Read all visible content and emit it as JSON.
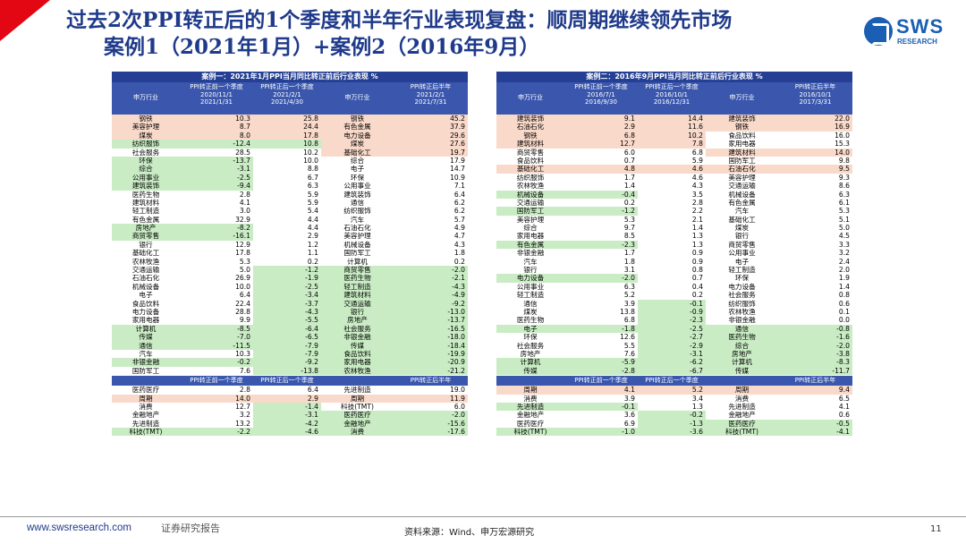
{
  "title": {
    "line1": "过去2次PPI转正后的1个季度和半年行业表现复盘：顺周期继续领先市场",
    "line2": "案例1（2021年1月）+案例2（2016年9月）"
  },
  "logo": {
    "text": "SWS",
    "sub": "RESEARCH",
    "color": "#1a5fb4"
  },
  "colors": {
    "header": "#243f94",
    "subheader": "#3a57ad",
    "green": "#c9ecc4",
    "pink": "#f9d9c9",
    "title": "#1f3a8a",
    "accent": "#e30613"
  },
  "panels": [
    {
      "title": "案例一：2021年1月PPI当月同比转正前后行业表现 %",
      "head": {
        "ind": "申万行业",
        "pre": [
          "PPI转正前一个季度",
          "2020/11/1",
          "2021/1/31"
        ],
        "post": [
          "PPI转正后一个季度",
          "2021/2/1",
          "2021/4/30"
        ],
        "ind2": "申万行业",
        "half": [
          "PPI转正后半年",
          "2021/2/1",
          "2021/7/31"
        ]
      },
      "rows": [
        {
          "a": "钢铁",
          "b": "10.3",
          "c": "25.8",
          "d": "钢铁",
          "e": "45.2",
          "ca": "pk",
          "cb": "pk",
          "cc": "pk",
          "cd": "pk",
          "ce": "pk"
        },
        {
          "a": "美容护理",
          "b": "8.7",
          "c": "24.4",
          "d": "有色金属",
          "e": "37.9",
          "ca": "pk",
          "cb": "pk",
          "cc": "pk",
          "cd": "pk",
          "ce": "pk"
        },
        {
          "a": "煤炭",
          "b": "8.0",
          "c": "17.8",
          "d": "电力设备",
          "e": "29.6",
          "ca": "pk",
          "cb": "pk",
          "cc": "pk",
          "cd": "pk",
          "ce": "pk"
        },
        {
          "a": "纺织服饰",
          "b": "-12.4",
          "c": "10.8",
          "d": "煤炭",
          "e": "27.6",
          "ca": "gr",
          "cb": "gr",
          "cc": "gr",
          "cd": "pk",
          "ce": "pk"
        },
        {
          "a": "社会服务",
          "b": "28.5",
          "c": "10.2",
          "d": "基础化工",
          "e": "19.7",
          "cd": "pk",
          "ce": "pk"
        },
        {
          "a": "环保",
          "b": "-13.7",
          "c": "10.0",
          "d": "综合",
          "e": "17.9",
          "ca": "gr",
          "cb": "gr"
        },
        {
          "a": "综合",
          "b": "-3.1",
          "c": "8.8",
          "d": "电子",
          "e": "14.7",
          "ca": "gr",
          "cb": "gr"
        },
        {
          "a": "公用事业",
          "b": "-2.5",
          "c": "6.7",
          "d": "环保",
          "e": "10.9",
          "ca": "gr",
          "cb": "gr"
        },
        {
          "a": "建筑装饰",
          "b": "-9.4",
          "c": "6.3",
          "d": "公用事业",
          "e": "7.1",
          "ca": "gr",
          "cb": "gr"
        },
        {
          "a": "医药生物",
          "b": "2.8",
          "c": "5.9",
          "d": "建筑装饰",
          "e": "6.4"
        },
        {
          "a": "建筑材料",
          "b": "4.1",
          "c": "5.9",
          "d": "通信",
          "e": "6.2"
        },
        {
          "a": "轻工制造",
          "b": "3.0",
          "c": "5.4",
          "d": "纺织服饰",
          "e": "6.2"
        },
        {
          "a": "有色金属",
          "b": "32.9",
          "c": "4.4",
          "d": "汽车",
          "e": "5.7"
        },
        {
          "a": "房地产",
          "b": "-8.2",
          "c": "4.4",
          "d": "石油石化",
          "e": "4.9",
          "ca": "gr",
          "cb": "gr"
        },
        {
          "a": "商贸零售",
          "b": "-16.1",
          "c": "2.9",
          "d": "美容护理",
          "e": "4.7",
          "ca": "gr",
          "cb": "gr"
        },
        {
          "a": "银行",
          "b": "12.9",
          "c": "1.2",
          "d": "机械设备",
          "e": "4.3"
        },
        {
          "a": "基础化工",
          "b": "17.8",
          "c": "1.1",
          "d": "国防军工",
          "e": "1.8"
        },
        {
          "a": "农林牧渔",
          "b": "5.3",
          "c": "0.2",
          "d": "计算机",
          "e": "0.2"
        },
        {
          "a": "交通运输",
          "b": "5.0",
          "c": "-1.2",
          "d": "商贸零售",
          "e": "-2.0",
          "cc": "gr",
          "cd": "gr",
          "ce": "gr"
        },
        {
          "a": "石油石化",
          "b": "26.9",
          "c": "-1.9",
          "d": "医药生物",
          "e": "-2.1",
          "cc": "gr",
          "cd": "gr",
          "ce": "gr"
        },
        {
          "a": "机械设备",
          "b": "10.0",
          "c": "-2.5",
          "d": "轻工制造",
          "e": "-4.3",
          "cc": "gr",
          "cd": "gr",
          "ce": "gr"
        },
        {
          "a": "电子",
          "b": "6.4",
          "c": "-3.4",
          "d": "建筑材料",
          "e": "-4.9",
          "cc": "gr",
          "cd": "gr",
          "ce": "gr"
        },
        {
          "a": "食品饮料",
          "b": "22.4",
          "c": "-3.7",
          "d": "交通运输",
          "e": "-9.2",
          "cc": "gr",
          "cd": "gr",
          "ce": "gr"
        },
        {
          "a": "电力设备",
          "b": "28.8",
          "c": "-4.3",
          "d": "银行",
          "e": "-13.0",
          "cc": "gr",
          "cd": "gr",
          "ce": "gr"
        },
        {
          "a": "家用电器",
          "b": "9.9",
          "c": "-5.5",
          "d": "房地产",
          "e": "-13.7",
          "cc": "gr",
          "cd": "gr",
          "ce": "gr"
        },
        {
          "a": "计算机",
          "b": "-8.5",
          "c": "-6.4",
          "d": "社会服务",
          "e": "-16.5",
          "ca": "gr",
          "cb": "gr",
          "cc": "gr",
          "cd": "gr",
          "ce": "gr"
        },
        {
          "a": "传媒",
          "b": "-7.0",
          "c": "-6.5",
          "d": "非银金融",
          "e": "-18.0",
          "ca": "gr",
          "cb": "gr",
          "cc": "gr",
          "cd": "gr",
          "ce": "gr"
        },
        {
          "a": "通信",
          "b": "-11.5",
          "c": "-7.9",
          "d": "传媒",
          "e": "-18.4",
          "ca": "gr",
          "cb": "gr",
          "cc": "gr",
          "cd": "gr",
          "ce": "gr"
        },
        {
          "a": "汽车",
          "b": "10.3",
          "c": "-7.9",
          "d": "食品饮料",
          "e": "-19.9",
          "cc": "gr",
          "cd": "gr",
          "ce": "gr"
        },
        {
          "a": "非银金融",
          "b": "-0.2",
          "c": "-9.2",
          "d": "家用电器",
          "e": "-20.9",
          "ca": "gr",
          "cb": "gr",
          "cc": "gr",
          "cd": "gr",
          "ce": "gr"
        },
        {
          "a": "国防军工",
          "b": "7.6",
          "c": "-13.8",
          "d": "农林牧渔",
          "e": "-21.2",
          "cc": "gr",
          "cd": "gr",
          "ce": "gr"
        }
      ],
      "sub": {
        "pre": "PPI转正前一个季度",
        "post": "PPI转正后一个季度",
        "half": "PPI转正后半年"
      },
      "rows2": [
        {
          "a": "医药医疗",
          "b": "2.8",
          "c": "6.4",
          "d": "先进制造",
          "e": "19.0"
        },
        {
          "a": "周期",
          "b": "14.0",
          "c": "2.9",
          "d": "周期",
          "e": "11.9",
          "ca": "pk",
          "cb": "pk",
          "cc": "pk",
          "cd": "pk",
          "ce": "pk"
        },
        {
          "a": "消费",
          "b": "12.7",
          "c": "-1.4",
          "d": "科技(TMT)",
          "e": "6.0",
          "cc": "gr"
        },
        {
          "a": "金融地产",
          "b": "3.2",
          "c": "-3.1",
          "d": "医药医疗",
          "e": "-2.0",
          "cc": "gr",
          "cd": "gr",
          "ce": "gr"
        },
        {
          "a": "先进制造",
          "b": "13.2",
          "c": "-4.2",
          "d": "金融地产",
          "e": "-15.6",
          "cc": "gr",
          "cd": "gr",
          "ce": "gr"
        },
        {
          "a": "科技(TMT)",
          "b": "-2.2",
          "c": "-4.6",
          "d": "消费",
          "e": "-17.6",
          "ca": "gr",
          "cb": "gr",
          "cc": "gr",
          "cd": "gr",
          "ce": "gr"
        }
      ]
    },
    {
      "title": "案例二：2016年9月PPI当月同比转正前后行业表现 %",
      "head": {
        "ind": "申万行业",
        "pre": [
          "PPI转正前一个季度",
          "2016/7/1",
          "2016/9/30"
        ],
        "post": [
          "PPI转正后一个季度",
          "2016/10/1",
          "2016/12/31"
        ],
        "ind2": "申万行业",
        "half": [
          "PPI转正后半年",
          "2016/10/1",
          "2017/3/31"
        ]
      },
      "rows": [
        {
          "a": "建筑装饰",
          "b": "9.1",
          "c": "14.4",
          "d": "建筑装饰",
          "e": "22.0",
          "ca": "pk",
          "cb": "pk",
          "cc": "pk",
          "cd": "pk",
          "ce": "pk"
        },
        {
          "a": "石油石化",
          "b": "2.9",
          "c": "11.6",
          "d": "钢铁",
          "e": "16.9",
          "ca": "pk",
          "cb": "pk",
          "cc": "pk",
          "cd": "pk",
          "ce": "pk"
        },
        {
          "a": "钢铁",
          "b": "6.8",
          "c": "10.2",
          "d": "食品饮料",
          "e": "16.0",
          "ca": "pk",
          "cb": "pk",
          "cc": "pk"
        },
        {
          "a": "建筑材料",
          "b": "12.7",
          "c": "7.8",
          "d": "家用电器",
          "e": "15.3",
          "ca": "pk",
          "cb": "pk",
          "cc": "pk"
        },
        {
          "a": "商贸零售",
          "b": "6.0",
          "c": "6.8",
          "d": "建筑材料",
          "e": "14.0",
          "cd": "pk",
          "ce": "pk"
        },
        {
          "a": "食品饮料",
          "b": "0.7",
          "c": "5.9",
          "d": "国防军工",
          "e": "9.8"
        },
        {
          "a": "基础化工",
          "b": "4.8",
          "c": "4.6",
          "d": "石油石化",
          "e": "9.5",
          "ca": "pk",
          "cb": "pk",
          "cc": "pk",
          "cd": "pk",
          "ce": "pk"
        },
        {
          "a": "纺织服饰",
          "b": "1.7",
          "c": "4.6",
          "d": "美容护理",
          "e": "9.3"
        },
        {
          "a": "农林牧渔",
          "b": "1.4",
          "c": "4.3",
          "d": "交通运输",
          "e": "8.6"
        },
        {
          "a": "机械设备",
          "b": "-0.4",
          "c": "3.5",
          "d": "机械设备",
          "e": "6.3",
          "ca": "gr",
          "cb": "gr"
        },
        {
          "a": "交通运输",
          "b": "0.2",
          "c": "2.8",
          "d": "有色金属",
          "e": "6.1"
        },
        {
          "a": "国防军工",
          "b": "-1.2",
          "c": "2.2",
          "d": "汽车",
          "e": "5.3",
          "ca": "gr",
          "cb": "gr"
        },
        {
          "a": "美容护理",
          "b": "5.3",
          "c": "2.1",
          "d": "基础化工",
          "e": "5.1"
        },
        {
          "a": "综合",
          "b": "9.7",
          "c": "1.4",
          "d": "煤炭",
          "e": "5.0"
        },
        {
          "a": "家用电器",
          "b": "8.5",
          "c": "1.3",
          "d": "银行",
          "e": "4.5"
        },
        {
          "a": "有色金属",
          "b": "-2.3",
          "c": "1.3",
          "d": "商贸零售",
          "e": "3.3",
          "ca": "gr",
          "cb": "gr"
        },
        {
          "a": "非银金融",
          "b": "1.7",
          "c": "0.9",
          "d": "公用事业",
          "e": "3.2"
        },
        {
          "a": "汽车",
          "b": "1.8",
          "c": "0.9",
          "d": "电子",
          "e": "2.4"
        },
        {
          "a": "银行",
          "b": "3.1",
          "c": "0.8",
          "d": "轻工制造",
          "e": "2.0"
        },
        {
          "a": "电力设备",
          "b": "-2.0",
          "c": "0.7",
          "d": "环保",
          "e": "1.9",
          "ca": "gr",
          "cb": "gr"
        },
        {
          "a": "公用事业",
          "b": "6.3",
          "c": "0.4",
          "d": "电力设备",
          "e": "1.4"
        },
        {
          "a": "轻工制造",
          "b": "5.2",
          "c": "0.2",
          "d": "社会服务",
          "e": "0.8"
        },
        {
          "a": "通信",
          "b": "3.9",
          "c": "-0.1",
          "d": "纺织服饰",
          "e": "0.6",
          "cc": "gr"
        },
        {
          "a": "煤炭",
          "b": "13.8",
          "c": "-0.9",
          "d": "农林牧渔",
          "e": "0.1",
          "cc": "gr"
        },
        {
          "a": "医药生物",
          "b": "6.8",
          "c": "-2.3",
          "d": "非银金融",
          "e": "0.0",
          "cc": "gr"
        },
        {
          "a": "电子",
          "b": "-1.8",
          "c": "-2.5",
          "d": "通信",
          "e": "-0.8",
          "ca": "gr",
          "cb": "gr",
          "cc": "gr",
          "cd": "gr",
          "ce": "gr"
        },
        {
          "a": "环保",
          "b": "12.6",
          "c": "-2.7",
          "d": "医药生物",
          "e": "-1.6",
          "cc": "gr",
          "cd": "gr",
          "ce": "gr"
        },
        {
          "a": "社会服务",
          "b": "5.5",
          "c": "-2.9",
          "d": "综合",
          "e": "-2.0",
          "cc": "gr",
          "cd": "gr",
          "ce": "gr"
        },
        {
          "a": "房地产",
          "b": "7.6",
          "c": "-3.1",
          "d": "房地产",
          "e": "-3.8",
          "cc": "gr",
          "cd": "gr",
          "ce": "gr"
        },
        {
          "a": "计算机",
          "b": "-5.9",
          "c": "-6.2",
          "d": "计算机",
          "e": "-8.3",
          "ca": "gr",
          "cb": "gr",
          "cc": "gr",
          "cd": "gr",
          "ce": "gr"
        },
        {
          "a": "传媒",
          "b": "-2.8",
          "c": "-6.7",
          "d": "传媒",
          "e": "-11.7",
          "ca": "gr",
          "cb": "gr",
          "cc": "gr",
          "cd": "gr",
          "ce": "gr"
        }
      ],
      "sub": {
        "pre": "PPI转正前一个季度",
        "post": "PPI转正后一个季度",
        "half": "PPI转正后半年"
      },
      "rows2": [
        {
          "a": "周期",
          "b": "4.1",
          "c": "5.2",
          "d": "周期",
          "e": "9.4",
          "ca": "pk",
          "cb": "pk",
          "cc": "pk",
          "cd": "pk",
          "ce": "pk"
        },
        {
          "a": "消费",
          "b": "3.9",
          "c": "3.4",
          "d": "消费",
          "e": "6.5"
        },
        {
          "a": "先进制造",
          "b": "-0.1",
          "c": "1.3",
          "d": "先进制造",
          "e": "4.1",
          "ca": "gr",
          "cb": "gr"
        },
        {
          "a": "金融地产",
          "b": "3.6",
          "c": "-0.2",
          "d": "金融地产",
          "e": "0.6",
          "cc": "gr"
        },
        {
          "a": "医药医疗",
          "b": "6.9",
          "c": "-1.3",
          "d": "医药医疗",
          "e": "-0.5",
          "cc": "gr",
          "cd": "gr",
          "ce": "gr"
        },
        {
          "a": "科技(TMT)",
          "b": "-1.0",
          "c": "-3.6",
          "d": "科技(TMT)",
          "e": "-4.1",
          "ca": "gr",
          "cb": "gr",
          "cc": "gr",
          "cd": "gr",
          "ce": "gr"
        }
      ]
    }
  ],
  "footer": {
    "url": "www.swsresearch.com",
    "report": "证券研究报告",
    "source": "资料来源：Wind、申万宏源研究",
    "page": "11"
  }
}
